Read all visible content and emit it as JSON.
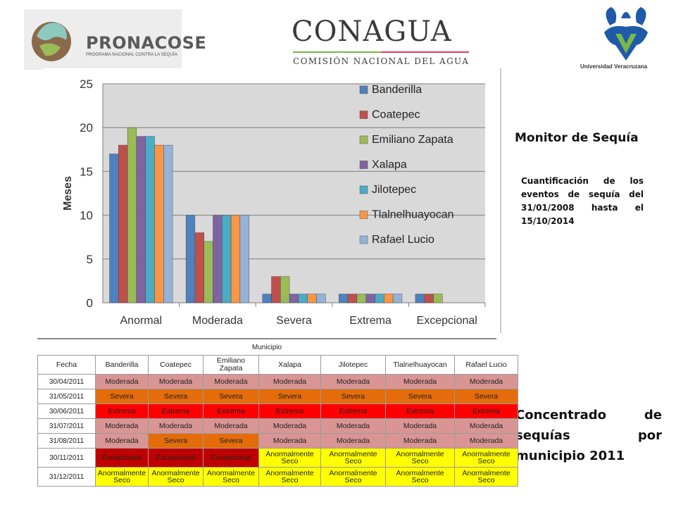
{
  "logos": {
    "pronacose_name": "PRONACOSE",
    "pronacose_sub": "PROGRAMA NACIONAL CONTRA LA SEQUÍA",
    "conagua_name": "CONAGUA",
    "conagua_sub": "COMISIÓN NACIONAL DEL AGUA",
    "uv_sub": "Universidad Veracruzana"
  },
  "side": {
    "monitor_title": "Monitor de Sequía",
    "monitor_desc": "Cuantificación de los eventos de sequía del 31/01/2008 hasta el 15/10/2014",
    "concentrado_title": "Concentrado de sequías por municipio 2011"
  },
  "chart_data": {
    "type": "bar",
    "categories": [
      "Anormal",
      "Moderada",
      "Severa",
      "Extrema",
      "Excepcional"
    ],
    "series": [
      {
        "name": "Banderilla",
        "color": "#4f81bd",
        "values": [
          17,
          10,
          1,
          1,
          1
        ]
      },
      {
        "name": "Coatepec",
        "color": "#c0504d",
        "values": [
          18,
          8,
          3,
          1,
          1
        ]
      },
      {
        "name": "Emiliano Zapata",
        "color": "#9bbb59",
        "values": [
          20,
          7,
          3,
          1,
          1
        ]
      },
      {
        "name": "Xalapa",
        "color": "#8064a2",
        "values": [
          19,
          10,
          1,
          1,
          0
        ]
      },
      {
        "name": "Jilotepec",
        "color": "#4bacc6",
        "values": [
          19,
          10,
          1,
          1,
          0
        ]
      },
      {
        "name": "Tlalnelhuayocan",
        "color": "#f79646",
        "values": [
          18,
          10,
          1,
          1,
          0
        ]
      },
      {
        "name": "Rafael Lucio",
        "color": "#95b3d7",
        "values": [
          18,
          10,
          1,
          1,
          0
        ]
      }
    ],
    "yticks": [
      "0",
      "5",
      "10",
      "15",
      "20",
      "25"
    ],
    "ylabel": "Meses",
    "ylim": [
      0,
      25
    ],
    "grid": true,
    "legend": "top-right"
  },
  "table": {
    "group_header": "Municipio",
    "headers": [
      "Fecha",
      "Banderilla",
      "Coatepec",
      "Emiliano Zapata",
      "Xalapa",
      "Jilotepec",
      "Tlalnelhuayocan",
      "Rafael Lucio"
    ],
    "rows": [
      {
        "date": "30/04/2011",
        "cells": [
          [
            "Moderada",
            "mod"
          ],
          [
            "Moderada",
            "mod"
          ],
          [
            "Moderada",
            "mod"
          ],
          [
            "Moderada",
            "mod"
          ],
          [
            "Moderada",
            "mod"
          ],
          [
            "Moderada",
            "mod"
          ],
          [
            "Moderada",
            "mod"
          ]
        ]
      },
      {
        "date": "31/05/2011",
        "cells": [
          [
            "Severa",
            "sev"
          ],
          [
            "Severa",
            "sev"
          ],
          [
            "Severa",
            "sev"
          ],
          [
            "Severa",
            "sev"
          ],
          [
            "Severa",
            "sev"
          ],
          [
            "Severa",
            "sev"
          ],
          [
            "Severa",
            "sev"
          ]
        ]
      },
      {
        "date": "30/06/2011",
        "cells": [
          [
            "Extrema",
            "ext"
          ],
          [
            "Extrema",
            "ext"
          ],
          [
            "Extrema",
            "ext"
          ],
          [
            "Extrema",
            "ext"
          ],
          [
            "Extrema",
            "ext"
          ],
          [
            "Extrema",
            "ext"
          ],
          [
            "Extrema",
            "ext"
          ]
        ]
      },
      {
        "date": "31/07/2011",
        "cells": [
          [
            "Moderada",
            "mod"
          ],
          [
            "Moderada",
            "mod"
          ],
          [
            "Moderada",
            "mod"
          ],
          [
            "Moderada",
            "mod"
          ],
          [
            "Moderada",
            "mod"
          ],
          [
            "Moderada",
            "mod"
          ],
          [
            "Moderada",
            "mod"
          ]
        ]
      },
      {
        "date": "31/08/2011",
        "cells": [
          [
            "Moderada",
            "mod"
          ],
          [
            "Severa",
            "sev"
          ],
          [
            "Severa",
            "sev"
          ],
          [
            "Moderada",
            "mod"
          ],
          [
            "Moderada",
            "mod"
          ],
          [
            "Moderada",
            "mod"
          ],
          [
            "Moderada",
            "mod"
          ]
        ]
      },
      {
        "date": "30/11/2011",
        "cells": [
          [
            "Excepcional",
            "exc"
          ],
          [
            "Excepcional",
            "exc"
          ],
          [
            "Excepcional",
            "exc"
          ],
          [
            "Anormalmente Seco",
            "anom"
          ],
          [
            "Anormalmente Seco",
            "anom"
          ],
          [
            "Anormalmente Seco",
            "anom"
          ],
          [
            "Anormalmente Seco",
            "anom"
          ]
        ]
      },
      {
        "date": "31/12/2011",
        "cells": [
          [
            "Anormalmente Seco",
            "anom"
          ],
          [
            "Anormalmente Seco",
            "anom"
          ],
          [
            "Anormalmente Seco",
            "anom"
          ],
          [
            "Anormalmente Seco",
            "anom"
          ],
          [
            "Anormalmente Seco",
            "anom"
          ],
          [
            "Anormalmente Seco",
            "anom"
          ],
          [
            "Anormalmente Seco",
            "anom"
          ]
        ]
      }
    ]
  }
}
